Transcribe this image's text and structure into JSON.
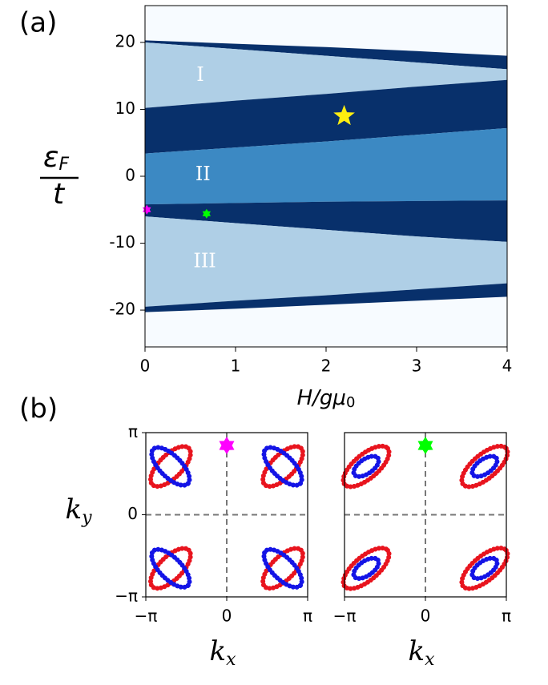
{
  "chart_data": [
    {
      "type": "area",
      "label": "(a)",
      "xlabel": {
        "text": "H/gμ",
        "sub": "0"
      },
      "ylabel": {
        "numerator": "ε",
        "numerator_sub": "F",
        "denominator": "t"
      },
      "xlim": [
        0,
        4.0
      ],
      "xticks": [
        0,
        1,
        2,
        3,
        4
      ],
      "ylim": [
        -25.5,
        25.5
      ],
      "yticks": [
        -20,
        -10,
        0,
        10,
        20
      ],
      "background": "#f7fbff",
      "x": [
        0,
        1,
        2,
        3,
        4
      ],
      "regions": [
        {
          "color": "#08306b",
          "upper": [
            20.3,
            19.8,
            19.3,
            18.7,
            18
          ],
          "lower": [
            20,
            19,
            18,
            17,
            16
          ]
        },
        {
          "color": "#afcfe6",
          "upper": [
            20,
            19,
            18,
            17,
            16
          ],
          "lower": [
            10.2,
            11.3,
            12.3,
            13.4,
            14.4
          ]
        },
        {
          "color": "#08306b",
          "upper": [
            10.2,
            11.3,
            12.3,
            13.4,
            14.4
          ],
          "lower": [
            3.4,
            4.3,
            5.2,
            6.2,
            7.2
          ]
        },
        {
          "color": "#3c89c3",
          "upper": [
            3.4,
            4.3,
            5.2,
            6.2,
            7.2
          ],
          "lower": [
            -4.2,
            -4.0,
            -3.8,
            -3.7,
            -3.6
          ]
        },
        {
          "color": "#08306b",
          "upper": [
            -4.2,
            -4.0,
            -3.8,
            -3.7,
            -3.6
          ],
          "lower": [
            -6,
            -7,
            -8,
            -9,
            -9.8
          ]
        },
        {
          "color": "#afcfe6",
          "upper": [
            -6,
            -7,
            -8,
            -9,
            -9.8
          ],
          "lower": [
            -19.5,
            -18.6,
            -17.8,
            -16.9,
            -16
          ]
        },
        {
          "color": "#08306b",
          "upper": [
            -19.5,
            -18.6,
            -17.8,
            -16.9,
            -16
          ],
          "lower": [
            -20.3,
            -19.8,
            -19.2,
            -18.6,
            -18
          ]
        }
      ],
      "annotations": [
        {
          "text": "I",
          "x": 0.61,
          "y": 15
        },
        {
          "text": "II",
          "x": 0.64,
          "y": 0.2
        },
        {
          "text": "III",
          "x": 0.66,
          "y": -12.8
        }
      ],
      "points": [
        {
          "x": 2.2,
          "y": 9,
          "color": "#ffee10",
          "marker": "star"
        },
        {
          "x": 0.02,
          "y": -5,
          "color": "#ff00ff",
          "marker": "hexagram"
        },
        {
          "x": 0.68,
          "y": -5.6,
          "color": "#00ff00",
          "marker": "hexagram"
        }
      ]
    },
    {
      "type": "scatter",
      "label": "(b)",
      "xlabel": {
        "text": "k",
        "sub": "x"
      },
      "ylabel": {
        "text": "k",
        "sub": "y"
      },
      "xlim": [
        -3.1416,
        3.1416
      ],
      "xticks": [
        {
          "value": -3.1416,
          "label": "−π"
        },
        0,
        {
          "value": 3.1416,
          "label": "π"
        }
      ],
      "ylim": [
        -3.1416,
        3.1416
      ],
      "yticks": [
        {
          "value": -3.1416,
          "label": "−π"
        },
        0,
        {
          "value": 3.1416,
          "label": "π"
        }
      ],
      "hlines": [
        0
      ],
      "vlines": [
        0
      ],
      "ellipses": [
        {
          "color": "#e8141e",
          "cx": -2.18,
          "cy": 1.85,
          "rx": 1.0,
          "ry": 0.45,
          "angle": 45
        },
        {
          "color": "#1414e6",
          "cx": -2.18,
          "cy": 1.85,
          "rx": 0.95,
          "ry": 0.42,
          "angle": -45
        },
        {
          "color": "#e8141e",
          "cx": 2.18,
          "cy": 1.85,
          "rx": 1.0,
          "ry": 0.45,
          "angle": 45
        },
        {
          "color": "#1414e6",
          "cx": 2.18,
          "cy": 1.85,
          "rx": 0.95,
          "ry": 0.42,
          "angle": -45
        },
        {
          "color": "#e8141e",
          "cx": -2.18,
          "cy": -2.05,
          "rx": 1.0,
          "ry": 0.45,
          "angle": 45
        },
        {
          "color": "#1414e6",
          "cx": -2.18,
          "cy": -2.05,
          "rx": 0.95,
          "ry": 0.42,
          "angle": -45
        },
        {
          "color": "#e8141e",
          "cx": 2.18,
          "cy": -2.05,
          "rx": 1.0,
          "ry": 0.45,
          "angle": 45
        },
        {
          "color": "#1414e6",
          "cx": 2.18,
          "cy": -2.05,
          "rx": 0.95,
          "ry": 0.42,
          "angle": -45
        }
      ],
      "points": [
        {
          "x": 0,
          "y": 2.65,
          "color": "#ff00ff",
          "marker": "hexagram"
        }
      ]
    },
    {
      "type": "scatter",
      "xlabel": {
        "text": "k",
        "sub": "x"
      },
      "xlim": [
        -3.1416,
        3.1416
      ],
      "xticks": [
        {
          "value": -3.1416,
          "label": "−π"
        },
        0,
        {
          "value": 3.1416,
          "label": "π"
        }
      ],
      "ylim": [
        -3.1416,
        3.1416
      ],
      "hlines": [
        0
      ],
      "vlines": [
        0
      ],
      "ellipses": [
        {
          "color": "#e8141e",
          "cx": -2.3,
          "cy": 1.85,
          "rx": 1.09,
          "ry": 0.47,
          "angle": 40
        },
        {
          "color": "#1414e6",
          "cx": -2.3,
          "cy": 1.85,
          "rx": 0.56,
          "ry": 0.28,
          "angle": 35
        },
        {
          "color": "#e8141e",
          "cx": 2.3,
          "cy": 1.85,
          "rx": 1.09,
          "ry": 0.47,
          "angle": 40
        },
        {
          "color": "#1414e6",
          "cx": 2.3,
          "cy": 1.85,
          "rx": 0.56,
          "ry": 0.28,
          "angle": 35
        },
        {
          "color": "#e8141e",
          "cx": -2.3,
          "cy": -2.05,
          "rx": 1.09,
          "ry": 0.47,
          "angle": 40
        },
        {
          "color": "#1414e6",
          "cx": -2.3,
          "cy": -2.05,
          "rx": 0.56,
          "ry": 0.28,
          "angle": 35
        },
        {
          "color": "#e8141e",
          "cx": 2.3,
          "cy": -2.05,
          "rx": 1.09,
          "ry": 0.47,
          "angle": 40
        },
        {
          "color": "#1414e6",
          "cx": 2.3,
          "cy": -2.05,
          "rx": 0.56,
          "ry": 0.28,
          "angle": 35
        }
      ],
      "points": [
        {
          "x": 0,
          "y": 2.65,
          "color": "#00ff00",
          "marker": "hexagram"
        }
      ]
    }
  ]
}
